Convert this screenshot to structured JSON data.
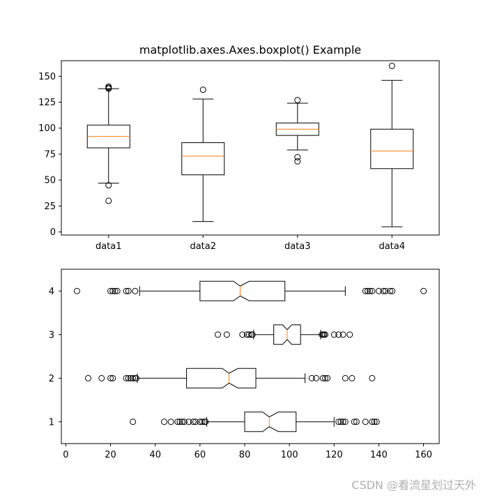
{
  "chart_data": [
    {
      "type": "boxplot",
      "title": "matplotlib.axes.Axes.boxplot() Example",
      "orientation": "vertical",
      "notch": false,
      "categories": [
        "data1",
        "data2",
        "data3",
        "data4"
      ],
      "ylim": [
        -3,
        165
      ],
      "yticks": [
        0,
        25,
        50,
        75,
        100,
        125,
        150
      ],
      "grid": false,
      "boxes": [
        {
          "label": "data1",
          "q1": 81,
          "median": 92,
          "q3": 103,
          "whislo": 47,
          "whishi": 138,
          "fliers": [
            30,
            45,
            138,
            139,
            140
          ]
        },
        {
          "label": "data2",
          "q1": 55,
          "median": 73,
          "q3": 86,
          "whislo": 10,
          "whishi": 128,
          "fliers": [
            137
          ]
        },
        {
          "label": "data3",
          "q1": 93,
          "median": 99,
          "q3": 105,
          "whislo": 79,
          "whishi": 124,
          "fliers": [
            68,
            72,
            127
          ]
        },
        {
          "label": "data4",
          "q1": 61,
          "median": 78,
          "q3": 99,
          "whislo": 5,
          "whishi": 146,
          "fliers": [
            160
          ]
        }
      ]
    },
    {
      "type": "boxplot",
      "orientation": "horizontal",
      "notch": true,
      "categories": [
        "1",
        "2",
        "3",
        "4"
      ],
      "xlim": [
        -2,
        167
      ],
      "xticks": [
        0,
        20,
        40,
        60,
        80,
        100,
        120,
        140,
        160
      ],
      "grid": false,
      "boxes": [
        {
          "label": "1",
          "q1": 80,
          "median": 91,
          "q3": 103,
          "notchlo": 88,
          "notchhi": 95,
          "whislo": 63,
          "whishi": 120,
          "fliers": [
            30,
            44,
            47,
            50,
            51,
            52,
            53,
            55,
            57,
            58,
            60,
            61,
            62,
            62.5,
            122,
            123,
            124,
            125,
            129,
            130,
            134,
            137,
            138,
            139
          ]
        },
        {
          "label": "2",
          "q1": 54,
          "median": 73,
          "q3": 85,
          "notchlo": 70,
          "notchhi": 77,
          "whislo": 32,
          "whishi": 107,
          "fliers": [
            10,
            16,
            20,
            21,
            27,
            28,
            29,
            30,
            31,
            31.5,
            110,
            112,
            115,
            116,
            117,
            125,
            128,
            137
          ]
        },
        {
          "label": "3",
          "q1": 93,
          "median": 99,
          "q3": 105,
          "notchlo": 97,
          "notchhi": 101,
          "whislo": 84,
          "whishi": 114,
          "fliers": [
            68,
            72,
            79,
            81,
            82,
            83,
            83.5,
            114.5,
            115,
            115.5,
            116,
            120,
            122,
            124,
            127
          ]
        },
        {
          "label": "4",
          "q1": 60,
          "median": 78,
          "q3": 98,
          "notchlo": 75,
          "notchhi": 82,
          "whislo": 33,
          "whishi": 125,
          "fliers": [
            5,
            20,
            21,
            22,
            23,
            27,
            28,
            31,
            134,
            135,
            136,
            137,
            140,
            142,
            143,
            145,
            146,
            160
          ]
        }
      ]
    }
  ],
  "watermark": "CSDN @看流星划过天外",
  "colors": {
    "median": "#ff7f0e",
    "box": "#000000",
    "background": "#ffffff"
  }
}
